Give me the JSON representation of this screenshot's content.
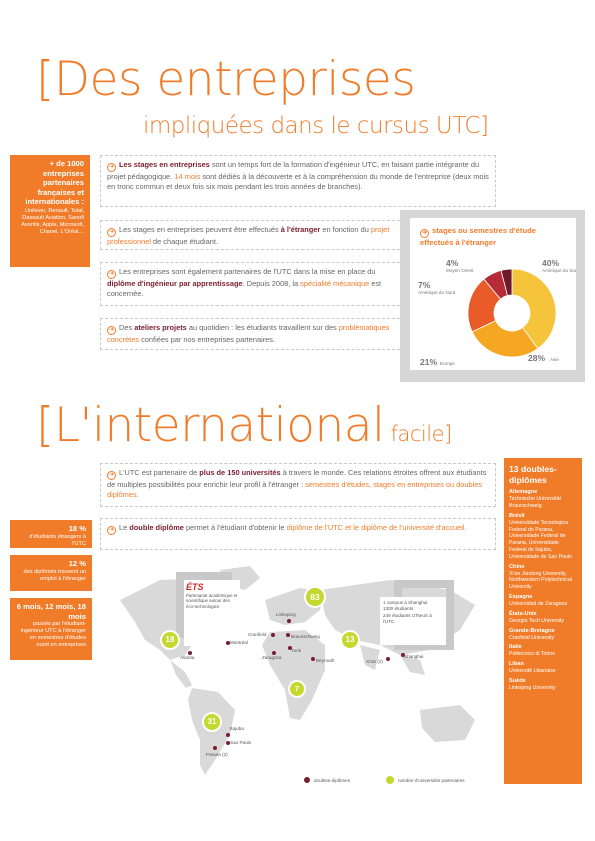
{
  "section1": {
    "title_line1": "[Des entreprises",
    "title_line2": "impliquées dans le cursus UTC]",
    "side_box": {
      "bold": "+ de 1000 entreprises partenaires françaises et internationales :",
      "list": "Unilever, Renault, Total, Dassault Aviation, Sanofi Aventis, Apple, Microsoft, Chanel, L'Oréal…"
    },
    "p1": {
      "bold": "Les stages en entreprises",
      "t1": " sont un temps fort de la formation d'ingénieur UTC, en faisant partie intégrante du projet pédagogique. ",
      "hl": "14 mois",
      "t2": " sont dédiés à la découverte et à la compréhension du monde de l'entreprise (deux mois en tronc commun et deux fois six mois pendant les trois années de branches)."
    },
    "p2": {
      "t1": "Les stages en entreprises peuvent être effectués ",
      "bold": "à l'étranger",
      "t2": " en fonction du ",
      "hl": "projet professionnel",
      "t3": " de chaque étudiant."
    },
    "p3": {
      "t1": "Les entreprises sont également partenaires de l'UTC dans la mise en place du ",
      "bold": "diplôme d'ingénieur par apprentissage",
      "t2": ". Depuis 2008, la ",
      "hl": "spécialité mécanique",
      "t3": " est concernée."
    },
    "p4": {
      "t1": "Des ",
      "bold": "ateliers projets",
      "t2": " au quotidien : les étudiants travaillent sur des ",
      "hl": "problématiques concrètes",
      "t3": " confiées par nos entreprises partenaires."
    }
  },
  "chart_data": {
    "type": "pie",
    "title": "stages ou semestres d'étude effectués à l'étranger",
    "series": [
      {
        "name": "Amérique du Sud",
        "value": 40,
        "label": "40%",
        "color": "#f5c43a"
      },
      {
        "name": "Asie",
        "value": 28,
        "label": "28%",
        "color": "#f5a623"
      },
      {
        "name": "Europe",
        "value": 21,
        "label": "21%",
        "color": "#ea5b2a"
      },
      {
        "name": "Amérique du Nord",
        "value": 7,
        "label": "7%",
        "color": "#b52c38"
      },
      {
        "name": "Moyen Orient",
        "value": 4,
        "label": "4%",
        "color": "#6e1a2a"
      }
    ]
  },
  "section2": {
    "title_main": "[L'international",
    "title_small": "facile]",
    "p1": {
      "t1": "L'UTC est partenaire de ",
      "bold": "plus de 150 universités",
      "t2": " à travers le monde. Ces relations étroites offrent aux étudiants de multiples possibilités pour enrichir leur profil à l'étranger : ",
      "hl": "semestres d'études, stages en entreprises ou doubles diplômes."
    },
    "p2": {
      "t1": "Le ",
      "bold": "double diplôme",
      "t2": " permet à l'étudiant d'obtenir le ",
      "hl": "diplôme de l'UTC et le diplôme de l'université d'accueil."
    },
    "stats": [
      {
        "big": "18 %",
        "small": "d'étudiants étrangers à l'UTC"
      },
      {
        "big": "12 %",
        "small": "des diplômés trouvent un emploi à l'étranger"
      },
      {
        "big": "6 mois, 12 mois, 18 mois",
        "small": "passés par l'étudiant-ingénieur UTC à l'étranger en semestres d'études ou/et en entreprises"
      }
    ],
    "map": {
      "ets_logo": "ÉTS",
      "ets_text": "Partenariat académique et scientifique autour des éco-technologies",
      "shanghai_text": "1 campus à Shanghai\n1300 étudiants\n248 étudiants UTseuS à l'UTC",
      "bubbles": [
        "18",
        "83",
        "13",
        "7",
        "31"
      ],
      "cities": [
        "Montréal",
        "Atlanta",
        "Cranfield",
        "Linkoping",
        "Braunschweig",
        "Turin",
        "Zaragoza",
        "Beyrouth",
        "Xi'an (2)",
        "Shanghai",
        "Itajuba",
        "Sao Paulo",
        "Parana (2)"
      ],
      "legend_red": "doubles-diplômes",
      "legend_green": "nombre d'universités partenaires"
    },
    "sidebar": {
      "title": "13 doubles-diplômes",
      "groups": [
        {
          "country": "Allemagne",
          "items": "Technische Universität Braunschweig"
        },
        {
          "country": "Brésil",
          "items": "Universidade Tecnologica Federal do Parana, Universidade Federal de Parana, Universidade Federal de Itajuba, Universidade de Sao Paulo"
        },
        {
          "country": "Chine",
          "items": "Xi'an Jiaotong University, Northwestern Polytechnical University"
        },
        {
          "country": "Espagne",
          "items": "Universidad de Zaragoza"
        },
        {
          "country": "États-Unis",
          "items": "Georgia Tech University"
        },
        {
          "country": "Grande-Bretagne",
          "items": "Cranfield University"
        },
        {
          "country": "Italie",
          "items": "Politecnico di Torino"
        },
        {
          "country": "Liban",
          "items": "Université Libanaise"
        },
        {
          "country": "Suède",
          "items": "Linkoping University"
        }
      ]
    }
  }
}
